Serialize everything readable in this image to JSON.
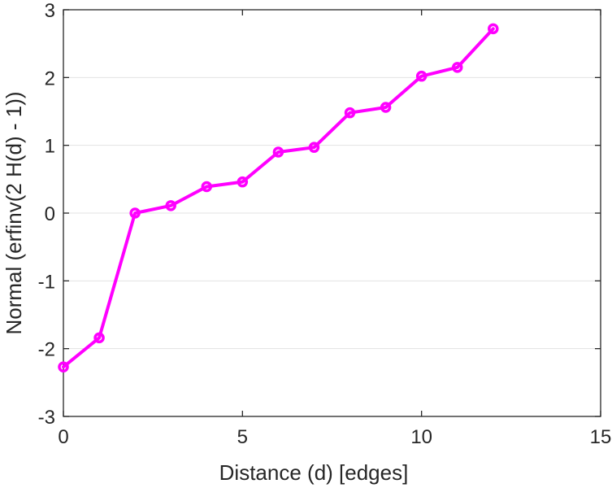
{
  "chart_data": {
    "type": "line",
    "title": "",
    "xlabel": "Distance (d) [edges]",
    "ylabel": "Normal (erfinv(2 H(d) - 1))",
    "xlim": [
      0,
      15
    ],
    "ylim": [
      -3,
      3
    ],
    "xticks": [
      0,
      5,
      10,
      15
    ],
    "yticks": [
      -3,
      -2,
      -1,
      0,
      1,
      2,
      3
    ],
    "grid": "horizontal",
    "legend": "none",
    "series": [
      {
        "color": "#ff00ff",
        "marker": "circle",
        "x": [
          0,
          1,
          2,
          3,
          4,
          5,
          6,
          7,
          8,
          9,
          10,
          11,
          12
        ],
        "y": [
          -2.27,
          -1.84,
          0.0,
          0.11,
          0.39,
          0.46,
          0.9,
          0.97,
          1.48,
          1.56,
          2.02,
          2.15,
          2.72
        ]
      }
    ]
  }
}
